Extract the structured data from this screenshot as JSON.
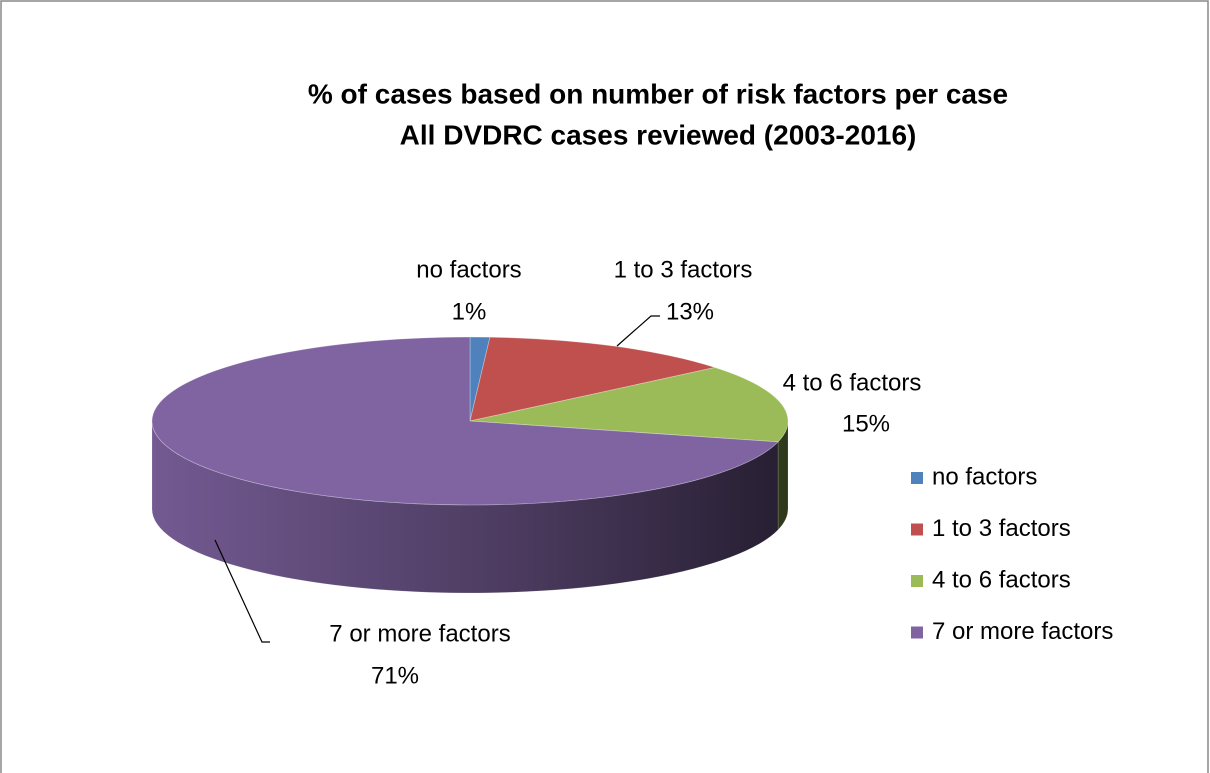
{
  "chart_data": {
    "type": "pie3d",
    "title": "% of cases based on number of risk factors per case",
    "subtitle": "All DVDRC cases reviewed (2003-2016)",
    "categories": [
      "no factors",
      "1 to 3 factors",
      "4 to 6 factors",
      "7 or more factors"
    ],
    "values": [
      1,
      13,
      15,
      71
    ],
    "value_labels": [
      "1%",
      "13%",
      "15%",
      "71%"
    ],
    "colors": [
      "#4f81bd",
      "#c0504d",
      "#9bbb59",
      "#8064a2"
    ],
    "legend": "right"
  }
}
